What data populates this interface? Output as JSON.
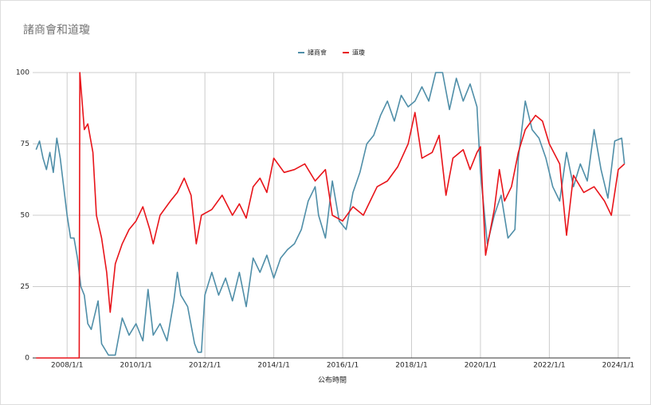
{
  "chart_data": {
    "type": "line",
    "title": "諸商會和道瓊",
    "x_label": "公布時間",
    "xlim": [
      2007,
      2024.35
    ],
    "ylim": [
      0,
      100
    ],
    "xticks": [
      {
        "value": 2008,
        "label": "2008/1/1"
      },
      {
        "value": 2010,
        "label": "2010/1/1"
      },
      {
        "value": 2012,
        "label": "2012/1/1"
      },
      {
        "value": 2014,
        "label": "2014/1/1"
      },
      {
        "value": 2016,
        "label": "2016/1/1"
      },
      {
        "value": 2018,
        "label": "2018/1/1"
      },
      {
        "value": 2020,
        "label": "2020/1/1"
      },
      {
        "value": 2022,
        "label": "2022/1/1"
      },
      {
        "value": 2024,
        "label": "2024/1/1"
      }
    ],
    "yticks": [
      0,
      25,
      50,
      75,
      100
    ],
    "grid": true,
    "legend": "top",
    "series": [
      {
        "name": "諸商會",
        "color": "#4f8ea8",
        "x": [
          2007.1,
          2007.2,
          2007.3,
          2007.4,
          2007.5,
          2007.6,
          2007.7,
          2007.8,
          2007.9,
          2008.0,
          2008.1,
          2008.2,
          2008.3,
          2008.4,
          2008.5,
          2008.6,
          2008.7,
          2008.8,
          2008.9,
          2009.0,
          2009.2,
          2009.4,
          2009.6,
          2009.8,
          2010.0,
          2010.2,
          2010.35,
          2010.5,
          2010.7,
          2010.9,
          2011.1,
          2011.2,
          2011.3,
          2011.5,
          2011.7,
          2011.8,
          2011.9,
          2012.0,
          2012.2,
          2012.4,
          2012.6,
          2012.8,
          2013.0,
          2013.2,
          2013.4,
          2013.6,
          2013.8,
          2014.0,
          2014.2,
          2014.4,
          2014.6,
          2014.8,
          2015.0,
          2015.2,
          2015.3,
          2015.5,
          2015.7,
          2015.9,
          2016.1,
          2016.3,
          2016.5,
          2016.7,
          2016.9,
          2017.1,
          2017.3,
          2017.5,
          2017.7,
          2017.9,
          2018.1,
          2018.3,
          2018.5,
          2018.7,
          2018.9,
          2019.1,
          2019.3,
          2019.5,
          2019.7,
          2019.9,
          2020.0,
          2020.2,
          2020.4,
          2020.6,
          2020.8,
          2021.0,
          2021.1,
          2021.3,
          2021.5,
          2021.7,
          2021.9,
          2022.1,
          2022.3,
          2022.5,
          2022.7,
          2022.9,
          2023.1,
          2023.3,
          2023.5,
          2023.7,
          2023.9,
          2024.1,
          2024.18
        ],
        "values": [
          73,
          76,
          70,
          66,
          72,
          65,
          77,
          70,
          60,
          50,
          42,
          42,
          35,
          25,
          22,
          12,
          10,
          15,
          20,
          5,
          1,
          1,
          14,
          8,
          12,
          6,
          24,
          8,
          12,
          6,
          20,
          30,
          22,
          18,
          5,
          2,
          2,
          22,
          30,
          22,
          28,
          20,
          30,
          18,
          35,
          30,
          36,
          28,
          35,
          38,
          40,
          45,
          55,
          60,
          50,
          42,
          62,
          48,
          45,
          58,
          65,
          75,
          78,
          85,
          90,
          83,
          92,
          88,
          90,
          95,
          90,
          100,
          100,
          87,
          98,
          90,
          96,
          88,
          65,
          40,
          50,
          57,
          42,
          45,
          70,
          90,
          80,
          77,
          70,
          60,
          55,
          72,
          60,
          68,
          62,
          80,
          66,
          56,
          76,
          77,
          68
        ]
      },
      {
        "name": "道瓊",
        "color": "#e8141a",
        "x": [
          2007.1,
          2008.35,
          2008.37,
          2008.5,
          2008.6,
          2008.75,
          2008.85,
          2009.0,
          2009.15,
          2009.25,
          2009.4,
          2009.6,
          2009.8,
          2010.0,
          2010.2,
          2010.4,
          2010.5,
          2010.7,
          2011.0,
          2011.2,
          2011.4,
          2011.6,
          2011.75,
          2011.9,
          2012.2,
          2012.5,
          2012.8,
          2013.0,
          2013.2,
          2013.4,
          2013.6,
          2013.8,
          2014.0,
          2014.3,
          2014.6,
          2014.9,
          2015.2,
          2015.5,
          2015.7,
          2016.0,
          2016.3,
          2016.6,
          2016.8,
          2017.0,
          2017.3,
          2017.6,
          2017.9,
          2018.1,
          2018.3,
          2018.6,
          2018.8,
          2019.0,
          2019.2,
          2019.5,
          2019.7,
          2019.9,
          2020.0,
          2020.15,
          2020.4,
          2020.55,
          2020.7,
          2020.9,
          2021.1,
          2021.3,
          2021.6,
          2021.8,
          2022.0,
          2022.3,
          2022.5,
          2022.7,
          2023.0,
          2023.3,
          2023.6,
          2023.8,
          2024.0,
          2024.18
        ],
        "values": [
          0,
          0,
          100,
          80,
          82,
          72,
          50,
          42,
          30,
          16,
          33,
          40,
          45,
          48,
          53,
          45,
          40,
          50,
          55,
          58,
          63,
          57,
          40,
          50,
          52,
          57,
          50,
          54,
          49,
          60,
          63,
          58,
          70,
          65,
          66,
          68,
          62,
          66,
          50,
          48,
          53,
          50,
          55,
          60,
          62,
          67,
          75,
          86,
          70,
          72,
          78,
          57,
          70,
          73,
          66,
          72,
          74,
          36,
          52,
          66,
          55,
          60,
          72,
          80,
          85,
          83,
          75,
          68,
          43,
          64,
          58,
          60,
          55,
          50,
          66,
          68
        ]
      }
    ]
  }
}
